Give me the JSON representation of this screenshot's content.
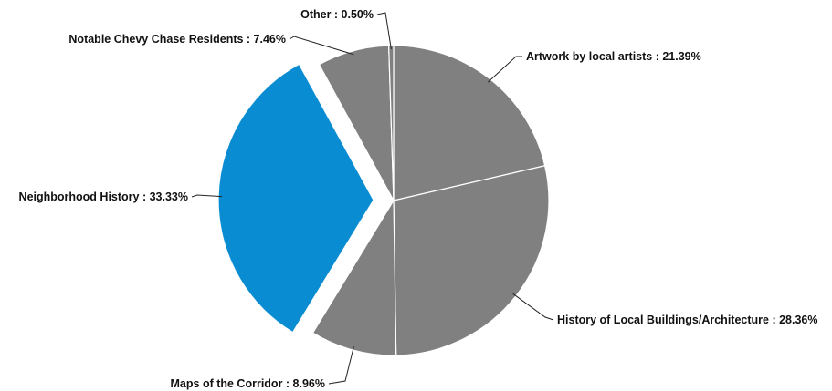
{
  "chart_data": {
    "type": "pie",
    "title": "",
    "start_angle_deg": 0,
    "direction": "clockwise",
    "colors": {
      "default": "#808080",
      "highlight": "#0A8CD2",
      "label": "#111111",
      "leader": "#222222"
    },
    "slices": [
      {
        "label": "Artwork by local artists",
        "value": 21.39,
        "display": "Artwork by local artists : 21.39%",
        "highlighted": false
      },
      {
        "label": "History of Local Buildings/Architecture",
        "value": 28.36,
        "display": "History of Local Buildings/Architecture : 28.36%",
        "highlighted": false
      },
      {
        "label": "Maps of the Corridor",
        "value": 8.96,
        "display": "Maps of the Corridor : 8.96%",
        "highlighted": false
      },
      {
        "label": "Neighborhood History",
        "value": 33.33,
        "display": "Neighborhood History : 33.33%",
        "highlighted": true
      },
      {
        "label": "Notable Chevy Chase Residents",
        "value": 7.46,
        "display": "Notable Chevy Chase Residents : 7.46%",
        "highlighted": false
      },
      {
        "label": "Other",
        "value": 0.5,
        "display": "Other : 0.50%",
        "highlighted": false
      }
    ]
  }
}
